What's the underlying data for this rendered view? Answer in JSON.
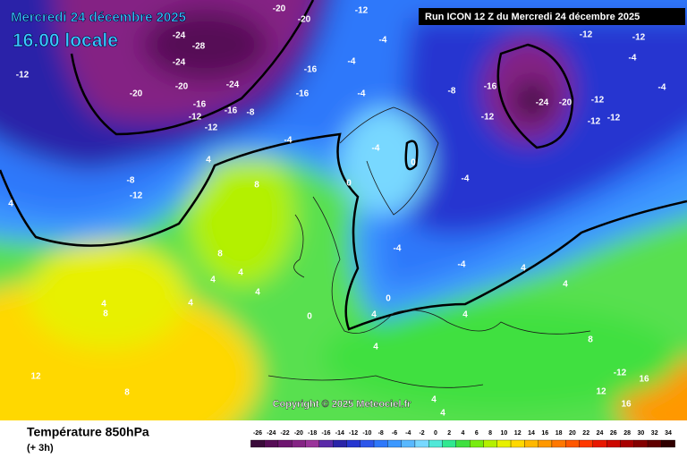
{
  "header": {
    "date": "Mercredi 24 décembre 2025",
    "time": "16.00 locale",
    "run": "Run ICON 12 Z du Mercredi 24 décembre 2025"
  },
  "copyright": "Copyright © 2025 Meteociel.fr",
  "footer": {
    "title": "Température 850hPa",
    "step": "(+ 3h)"
  },
  "legend": {
    "values": [
      -26,
      -24,
      -22,
      -20,
      -18,
      -16,
      -14,
      -12,
      -10,
      -8,
      -6,
      -4,
      -2,
      0,
      2,
      4,
      6,
      8,
      10,
      12,
      14,
      16,
      18,
      20,
      22,
      24,
      26,
      28,
      30,
      32,
      34
    ],
    "colors": [
      "#3a0a3a",
      "#560c56",
      "#6e1670",
      "#842484",
      "#9a349a",
      "#5a2aa8",
      "#2a24a8",
      "#2636d0",
      "#2c56ea",
      "#2e78fa",
      "#3c98ff",
      "#58b8ff",
      "#78d8ff",
      "#50e8d8",
      "#30e890",
      "#40e040",
      "#78ec10",
      "#b4f000",
      "#e8f000",
      "#ffd800",
      "#ffb800",
      "#ff9800",
      "#ff7800",
      "#ff5800",
      "#ff3800",
      "#e81800",
      "#cc0800",
      "#a80000",
      "#840000",
      "#600000",
      "#300000"
    ]
  },
  "map_labels": [
    -24,
    -28,
    -24,
    -20,
    -20,
    -24,
    -16,
    -16,
    -12,
    -12,
    -8,
    -12,
    -8,
    -12,
    -20,
    -20,
    -16,
    -16,
    -12,
    -4,
    -4,
    -4,
    -8,
    -16,
    -12,
    -24,
    -20,
    -12,
    -12,
    -12,
    -12,
    -12,
    -4,
    -4,
    -4,
    -4,
    0,
    0,
    -4,
    4,
    8,
    4,
    8,
    4,
    4,
    4,
    4,
    4,
    8,
    0,
    0,
    4,
    4,
    4,
    4,
    8,
    -12,
    16,
    16,
    12,
    12,
    8,
    4,
    4,
    4,
    -4,
    -4
  ]
}
